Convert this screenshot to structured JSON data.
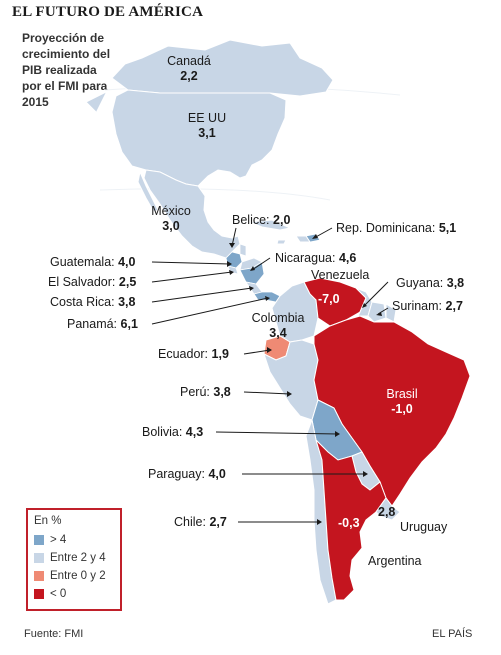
{
  "title": "EL FUTURO DE AMÉRICA",
  "subtitle": "Proyección de crecimiento del PIB realizada por el FMI para 2015",
  "legend": {
    "title": "En %",
    "items": [
      {
        "label": "> 4",
        "color": "#7ea6c9"
      },
      {
        "label": "Entre 2 y 4",
        "color": "#c8d6e6"
      },
      {
        "label": "Entre 0 y 2",
        "color": "#ef8a74"
      },
      {
        "label": "< 0",
        "color": "#c4151f"
      }
    ]
  },
  "countries": {
    "canada": {
      "name": "Canadá",
      "value": "2,2"
    },
    "usa": {
      "name": "EE UU",
      "value": "3,1"
    },
    "mexico": {
      "name": "México",
      "value": "3,0"
    },
    "belize": {
      "name": "Belice:",
      "value": "2,0"
    },
    "dominican": {
      "name": "Rep. Dominicana:",
      "value": "5,1"
    },
    "guatemala": {
      "name": "Guatemala:",
      "value": "4,0"
    },
    "nicaragua": {
      "name": "Nicaragua:",
      "value": "4,6"
    },
    "el_salvador": {
      "name": "El Salvador:",
      "value": "2,5"
    },
    "venezuela": {
      "name": "Venezuela",
      "value": "-7,0"
    },
    "costa_rica": {
      "name": "Costa Rica:",
      "value": "3,8"
    },
    "guyana": {
      "name": "Guyana:",
      "value": "3,8"
    },
    "suriname": {
      "name": "Surinam:",
      "value": "2,7"
    },
    "panama": {
      "name": "Panamá:",
      "value": "6,1"
    },
    "colombia": {
      "name": "Colombia",
      "value": "3,4"
    },
    "ecuador": {
      "name": "Ecuador:",
      "value": "1,9"
    },
    "peru": {
      "name": "Perú:",
      "value": "3,8"
    },
    "brazil": {
      "name": "Brasil",
      "value": "-1,0"
    },
    "bolivia": {
      "name": "Bolivia:",
      "value": "4,3"
    },
    "paraguay": {
      "name": "Paraguay:",
      "value": "4,0"
    },
    "chile": {
      "name": "Chile:",
      "value": "2,7"
    },
    "uruguay": {
      "name": "Uruguay",
      "value": "2,8"
    },
    "argentina": {
      "name": "Argentina",
      "value": "-0,3"
    }
  },
  "source": "Fuente: FMI",
  "credit": "EL PAÍS"
}
